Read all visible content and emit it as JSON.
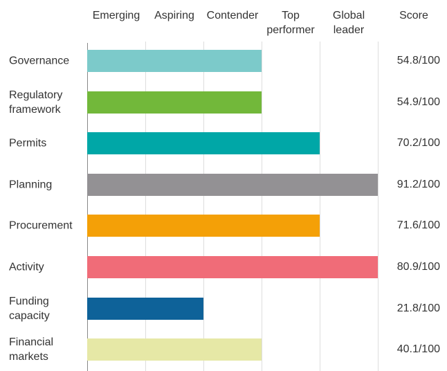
{
  "chart_data": {
    "type": "bar",
    "orientation": "horizontal",
    "levels": [
      "Emerging",
      "Aspiring",
      "Contender",
      "Top performer",
      "Global leader"
    ],
    "score_header": "Score",
    "categories": [
      "Governance",
      "Regulatory framework",
      "Permits",
      "Planning",
      "Procurement",
      "Activity",
      "Funding capacity",
      "Financial markets"
    ],
    "values": [
      3,
      3,
      4,
      5,
      4,
      5,
      2,
      3
    ],
    "score_labels": [
      "54.8/100",
      "54.9/100",
      "70.2/100",
      "91.2/100",
      "71.6/100",
      "80.9/100",
      "21.8/100",
      "40.1/100"
    ],
    "colors": [
      "#7ccaca",
      "#72b83a",
      "#00a7a7",
      "#939194",
      "#f4a007",
      "#f06c78",
      "#0e6299",
      "#e6e8a6"
    ],
    "xlim": [
      0,
      5
    ],
    "xticks": [
      0,
      1,
      2,
      3,
      4,
      5
    ],
    "grid": true
  }
}
